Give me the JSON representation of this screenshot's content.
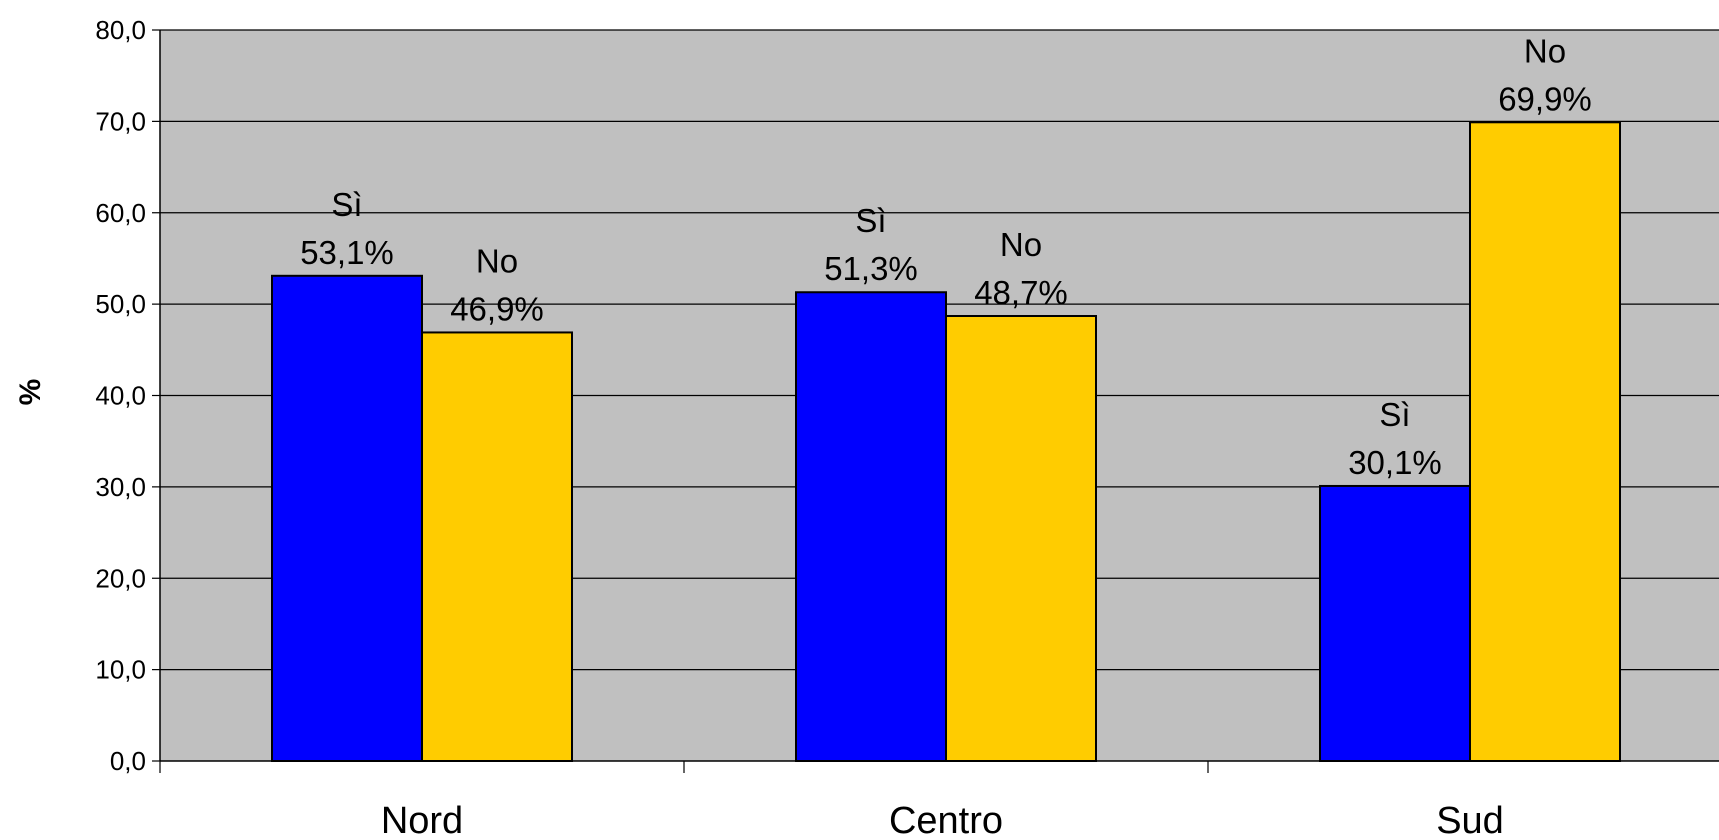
{
  "chart_data": {
    "type": "bar",
    "categories": [
      "Nord",
      "Centro",
      "Sud"
    ],
    "series": [
      {
        "name": "Sì",
        "values": [
          53.1,
          51.3,
          30.1
        ],
        "labels": [
          "53,1%",
          "51,3%",
          "30,1%"
        ],
        "color": "#0000ff"
      },
      {
        "name": "No",
        "values": [
          46.9,
          48.7,
          69.9
        ],
        "labels": [
          "46,9%",
          "48,7%",
          "69,9%"
        ],
        "color": "#ffcc00"
      }
    ],
    "title": "",
    "xlabel": "",
    "ylabel": "%",
    "ylim": [
      0,
      80
    ],
    "yticks": [
      0,
      10,
      20,
      30,
      40,
      50,
      60,
      70,
      80
    ],
    "ytick_labels": [
      "0,0",
      "10,0",
      "20,0",
      "30,0",
      "40,0",
      "50,0",
      "60,0",
      "70,0",
      "80,0"
    ],
    "grid": true,
    "plot_background": "#c0c0c0",
    "legend": "none"
  }
}
